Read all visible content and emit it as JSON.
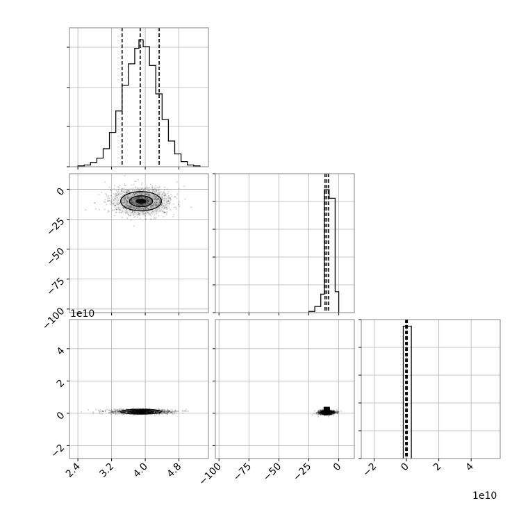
{
  "chart_data": {
    "type": "corner",
    "title": "",
    "labels": [
      "",
      "",
      ""
    ],
    "offset_texts": {
      "y2": "1e10",
      "x2": "1e10"
    },
    "params": [
      {
        "range": [
          2.2,
          5.5
        ],
        "ticks": [
          2.4,
          3.2,
          4.0,
          4.8
        ],
        "tick_labels": [
          "2.4",
          "3.2",
          "4.0",
          "4.8"
        ],
        "quantiles": [
          3.45,
          3.88,
          4.33
        ]
      },
      {
        "range": [
          -103,
          13
        ],
        "ticks": [
          -100,
          -75,
          -50,
          -25,
          0
        ],
        "tick_labels": [
          "−100",
          "−75",
          "−50",
          "−25",
          "0"
        ],
        "quantiles": [
          -11.5,
          -10,
          -8.5
        ]
      },
      {
        "range": [
          -2.8,
          5.8
        ],
        "ticks": [
          -2,
          0,
          2,
          4
        ],
        "tick_labels": [
          "−2",
          "0",
          "2",
          "4"
        ],
        "quantiles": [
          -0.05,
          0.0,
          0.05
        ]
      }
    ],
    "histograms": [
      {
        "edges": [
          2.4,
          2.55,
          2.7,
          2.85,
          3.0,
          3.15,
          3.3,
          3.45,
          3.6,
          3.75,
          3.85,
          3.95,
          4.1,
          4.25,
          4.4,
          4.55,
          4.7,
          4.85,
          5.0,
          5.15,
          5.3
        ],
        "counts": [
          1,
          2,
          5,
          10,
          21,
          40,
          65,
          95,
          120,
          138,
          148,
          140,
          118,
          85,
          55,
          30,
          15,
          6,
          2,
          1
        ],
        "ymax": 162,
        "ytick_fractions": [
          0.0,
          0.29,
          0.57,
          0.86
        ]
      },
      {
        "edges": [
          -25,
          -20,
          -15,
          -12,
          -8,
          -3,
          0
        ],
        "counts": [
          1,
          5,
          15,
          100,
          93,
          17
        ],
        "ymax": 113,
        "ytick_fractions": [
          0.0,
          0.2,
          0.4,
          0.6,
          0.8,
          1.0
        ]
      },
      {
        "edges": [
          -0.2,
          0.05,
          0.3
        ],
        "counts": [
          100,
          100
        ],
        "ymax": 105,
        "ytick_fractions": [
          0.0,
          0.2,
          0.4,
          0.6,
          0.8,
          1.0
        ]
      }
    ],
    "scatter_centers": [
      {
        "x": 3.9,
        "y": -10,
        "sx": 0.42,
        "sy": 7
      },
      {
        "x": 3.9,
        "y": 0.1,
        "sx": 0.42,
        "sy": 0.08
      },
      {
        "x": -10,
        "y": 0.05,
        "sx": 4,
        "sy": 0.08
      }
    ],
    "grid": true
  }
}
